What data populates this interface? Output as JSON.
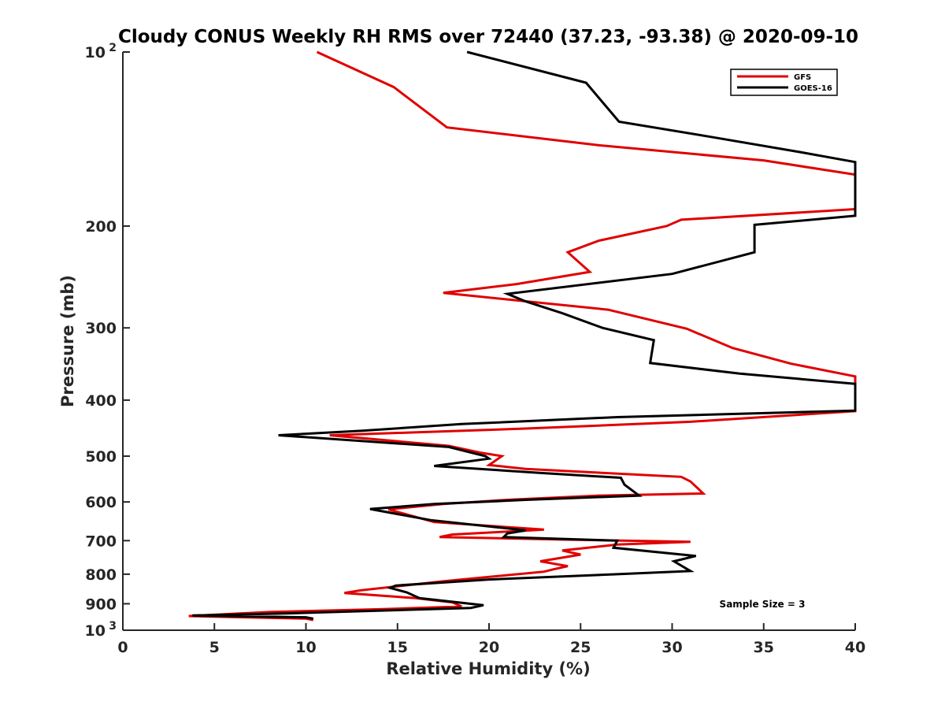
{
  "chart_data": {
    "type": "line",
    "title": "Cloudy CONUS Weekly RH RMS over 72440 (37.23, -93.38) @ 2020-09-10",
    "xlabel": "Relative Humidity (%)",
    "ylabel": "Pressure (mb)",
    "xlim": [
      0,
      40
    ],
    "ylim": [
      100,
      1000
    ],
    "yscale": "log",
    "y_reversed": true,
    "grid": false,
    "legend_position": "top-right",
    "x_ticks": [
      "0",
      "5",
      "10",
      "15",
      "20",
      "25",
      "30",
      "35",
      "40"
    ],
    "y_ticks": [
      {
        "value": 100,
        "label": "10",
        "sup": "2"
      },
      {
        "value": 200,
        "label": "200"
      },
      {
        "value": 300,
        "label": "300"
      },
      {
        "value": 400,
        "label": "400"
      },
      {
        "value": 500,
        "label": "500"
      },
      {
        "value": 600,
        "label": "600"
      },
      {
        "value": 700,
        "label": "700"
      },
      {
        "value": 800,
        "label": "800"
      },
      {
        "value": 900,
        "label": "900"
      },
      {
        "value": 1000,
        "label": "10",
        "sup": "3"
      }
    ],
    "annotation": "Sample Size = 3",
    "series": [
      {
        "name": "GFS",
        "color": "#e00000",
        "points": [
          [
            10.6,
            100
          ],
          [
            14.8,
            115
          ],
          [
            17.7,
            135
          ],
          [
            26,
            145
          ],
          [
            35,
            154
          ],
          [
            40,
            163
          ],
          [
            40,
            187
          ],
          [
            30.5,
            195
          ],
          [
            29.7,
            200
          ],
          [
            26,
            212
          ],
          [
            24.3,
            222
          ],
          [
            25.5,
            240
          ],
          [
            21.5,
            252
          ],
          [
            17.5,
            261
          ],
          [
            26.5,
            279
          ],
          [
            30.8,
            301
          ],
          [
            33.3,
            325
          ],
          [
            36.5,
            346
          ],
          [
            40,
            364
          ],
          [
            40,
            418
          ],
          [
            31,
            436
          ],
          [
            22,
            448
          ],
          [
            11.3,
            460
          ],
          [
            17.8,
            480
          ],
          [
            19.5,
            493
          ],
          [
            20.7,
            500
          ],
          [
            20,
            518
          ],
          [
            22,
            526
          ],
          [
            26,
            534
          ],
          [
            30.5,
            543
          ],
          [
            31,
            553
          ],
          [
            31.7,
            580
          ],
          [
            26,
            585
          ],
          [
            21,
            595
          ],
          [
            17.5,
            605
          ],
          [
            14.5,
            618
          ],
          [
            17,
            650
          ],
          [
            23,
            670
          ],
          [
            21.5,
            674
          ],
          [
            18,
            683
          ],
          [
            17.3,
            690
          ],
          [
            24,
            697
          ],
          [
            31,
            703
          ],
          [
            27,
            711
          ],
          [
            24,
            728
          ],
          [
            25,
            740
          ],
          [
            22.8,
            760
          ],
          [
            24.3,
            775
          ],
          [
            23.5,
            785
          ],
          [
            23,
            792
          ],
          [
            17.5,
            823
          ],
          [
            13,
            853
          ],
          [
            12.1,
            862
          ],
          [
            16,
            880
          ],
          [
            18,
            895
          ],
          [
            18.5,
            910
          ],
          [
            14,
            920
          ],
          [
            8,
            930
          ],
          [
            3.6,
            945
          ],
          [
            10,
            955
          ],
          [
            10.4,
            960
          ]
        ]
      },
      {
        "name": "GOES-16",
        "color": "#000000",
        "points": [
          [
            18.8,
            100
          ],
          [
            25.3,
            113
          ],
          [
            27.1,
            132
          ],
          [
            32,
            140
          ],
          [
            37,
            149
          ],
          [
            40,
            155
          ],
          [
            40,
            192
          ],
          [
            34.5,
            199
          ],
          [
            34.5,
            222
          ],
          [
            30,
            242
          ],
          [
            21,
            262
          ],
          [
            22,
            270
          ],
          [
            24,
            283
          ],
          [
            26.2,
            300
          ],
          [
            29,
            315
          ],
          [
            28.8,
            345
          ],
          [
            33.7,
            360
          ],
          [
            40,
            375
          ],
          [
            40,
            417
          ],
          [
            27,
            428
          ],
          [
            18.5,
            440
          ],
          [
            13,
            452
          ],
          [
            8.5,
            460
          ],
          [
            17.8,
            482
          ],
          [
            19.8,
            500
          ],
          [
            20,
            505
          ],
          [
            17,
            520
          ],
          [
            23,
            535
          ],
          [
            27.2,
            545
          ],
          [
            27.4,
            560
          ],
          [
            28.2,
            585
          ],
          [
            22,
            595
          ],
          [
            17,
            605
          ],
          [
            13.5,
            617
          ],
          [
            16.8,
            645
          ],
          [
            22,
            672
          ],
          [
            21,
            680
          ],
          [
            20.8,
            690
          ],
          [
            27,
            700
          ],
          [
            26.8,
            720
          ],
          [
            31.3,
            744
          ],
          [
            30.1,
            760
          ],
          [
            31,
            790
          ],
          [
            27,
            800
          ],
          [
            20,
            817
          ],
          [
            14.9,
            837
          ],
          [
            14.6,
            845
          ],
          [
            15.5,
            860
          ],
          [
            16.2,
            880
          ],
          [
            19.7,
            905
          ],
          [
            19,
            915
          ],
          [
            9,
            935
          ],
          [
            3.8,
            943
          ],
          [
            10,
            950
          ],
          [
            10.4,
            955
          ]
        ]
      }
    ]
  }
}
